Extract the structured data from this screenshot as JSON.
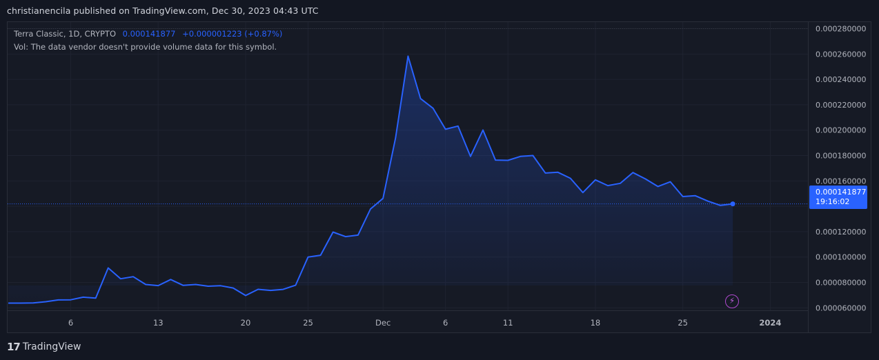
{
  "header": {
    "published_text": "christianencila published on TradingView.com, Dec 30, 2023 04:43 UTC"
  },
  "legend": {
    "symbol": "Terra Classic, 1D, CRYPTO",
    "price": "0.000141877",
    "change": "+0.000001223 (+0.87%)",
    "volume_note": "Vol: The data vendor doesn't provide volume data for this symbol."
  },
  "price_tag": {
    "price": "0.000141877",
    "countdown": "19:16:02"
  },
  "footer": {
    "brand_mark": "17",
    "brand": "TradingView"
  },
  "colors": {
    "background": "#131722",
    "line": "#2962ff",
    "grid": "#1f2330",
    "text": "#b2b5be"
  },
  "icons": [
    "tradingview-logo-icon",
    "lightning-icon"
  ],
  "chart_data": {
    "type": "area",
    "title": "Terra Classic, 1D, CRYPTO",
    "xlabel": "",
    "ylabel": "",
    "ylim": [
      5.8e-05,
      0.000283
    ],
    "y_ticks": [
      6e-05,
      8e-05,
      0.0001,
      0.00012,
      0.00014,
      0.00016,
      0.00018,
      0.0002,
      0.00022,
      0.00024,
      0.00026,
      0.00028
    ],
    "y_tick_labels": [
      "0.000060000",
      "0.000080000",
      "0.000100000",
      "0.000120000",
      "0.000140000",
      "0.000160000",
      "0.000180000",
      "0.000200000",
      "0.000220000",
      "0.000240000",
      "0.000260000",
      "0.000280000"
    ],
    "x_tick_labels": [
      {
        "date": "2023-11-06",
        "label": "6"
      },
      {
        "date": "2023-11-13",
        "label": "13"
      },
      {
        "date": "2023-11-20",
        "label": "20"
      },
      {
        "date": "2023-11-25",
        "label": "25"
      },
      {
        "date": "2023-12-01",
        "label": "Dec"
      },
      {
        "date": "2023-12-06",
        "label": "6"
      },
      {
        "date": "2023-12-11",
        "label": "11"
      },
      {
        "date": "2023-12-18",
        "label": "18"
      },
      {
        "date": "2023-12-25",
        "label": "25"
      },
      {
        "date": "2024-01-01",
        "label": "2024"
      }
    ],
    "x_range": [
      "2023-10-31",
      "2024-01-04"
    ],
    "last_value": 0.000141877,
    "grid": true,
    "series": [
      {
        "values": [
          [
            "2023-11-01",
            6.37e-05
          ],
          [
            "2023-11-02",
            6.37e-05
          ],
          [
            "2023-11-03",
            6.38e-05
          ],
          [
            "2023-11-04",
            6.48e-05
          ],
          [
            "2023-11-05",
            6.62e-05
          ],
          [
            "2023-11-06",
            6.63e-05
          ],
          [
            "2023-11-07",
            6.84e-05
          ],
          [
            "2023-11-08",
            6.76e-05
          ],
          [
            "2023-11-09",
            9.14e-05
          ],
          [
            "2023-11-10",
            8.29e-05
          ],
          [
            "2023-11-11",
            8.45e-05
          ],
          [
            "2023-11-12",
            7.84e-05
          ],
          [
            "2023-11-13",
            7.75e-05
          ],
          [
            "2023-11-14",
            8.23e-05
          ],
          [
            "2023-11-15",
            7.77e-05
          ],
          [
            "2023-11-16",
            7.84e-05
          ],
          [
            "2023-11-17",
            7.7e-05
          ],
          [
            "2023-11-18",
            7.74e-05
          ],
          [
            "2023-11-19",
            7.56e-05
          ],
          [
            "2023-11-20",
            6.97e-05
          ],
          [
            "2023-11-21",
            7.46e-05
          ],
          [
            "2023-11-22",
            7.37e-05
          ],
          [
            "2023-11-23",
            7.45e-05
          ],
          [
            "2023-11-24",
            7.78e-05
          ],
          [
            "2023-11-25",
            0.0001
          ],
          [
            "2023-11-26",
            0.0001014
          ],
          [
            "2023-11-27",
            0.0001197
          ],
          [
            "2023-11-28",
            0.0001161
          ],
          [
            "2023-11-29",
            0.0001173
          ],
          [
            "2023-11-30",
            0.0001379
          ],
          [
            "2023-12-01",
            0.0001462
          ],
          [
            "2023-12-02",
            0.0001938
          ],
          [
            "2023-12-03",
            0.0002583
          ],
          [
            "2023-12-04",
            0.0002249
          ],
          [
            "2023-12-05",
            0.0002173
          ],
          [
            "2023-12-06",
            0.0002007
          ],
          [
            "2023-12-07",
            0.0002032
          ],
          [
            "2023-12-08",
            0.0001793
          ],
          [
            "2023-12-09",
            0.0002001
          ],
          [
            "2023-12-10",
            0.0001764
          ],
          [
            "2023-12-11",
            0.0001762
          ],
          [
            "2023-12-12",
            0.0001793
          ],
          [
            "2023-12-13",
            0.00018
          ],
          [
            "2023-12-14",
            0.0001662
          ],
          [
            "2023-12-15",
            0.0001668
          ],
          [
            "2023-12-16",
            0.0001621
          ],
          [
            "2023-12-17",
            0.0001508
          ],
          [
            "2023-12-18",
            0.0001608
          ],
          [
            "2023-12-19",
            0.0001563
          ],
          [
            "2023-12-20",
            0.0001581
          ],
          [
            "2023-12-21",
            0.0001666
          ],
          [
            "2023-12-22",
            0.0001616
          ],
          [
            "2023-12-23",
            0.0001556
          ],
          [
            "2023-12-24",
            0.0001593
          ],
          [
            "2023-12-25",
            0.0001477
          ],
          [
            "2023-12-26",
            0.0001483
          ],
          [
            "2023-12-27",
            0.0001441
          ],
          [
            "2023-12-28",
            0.0001407
          ],
          [
            "2023-12-29",
            0.0001419
          ]
        ]
      }
    ]
  }
}
